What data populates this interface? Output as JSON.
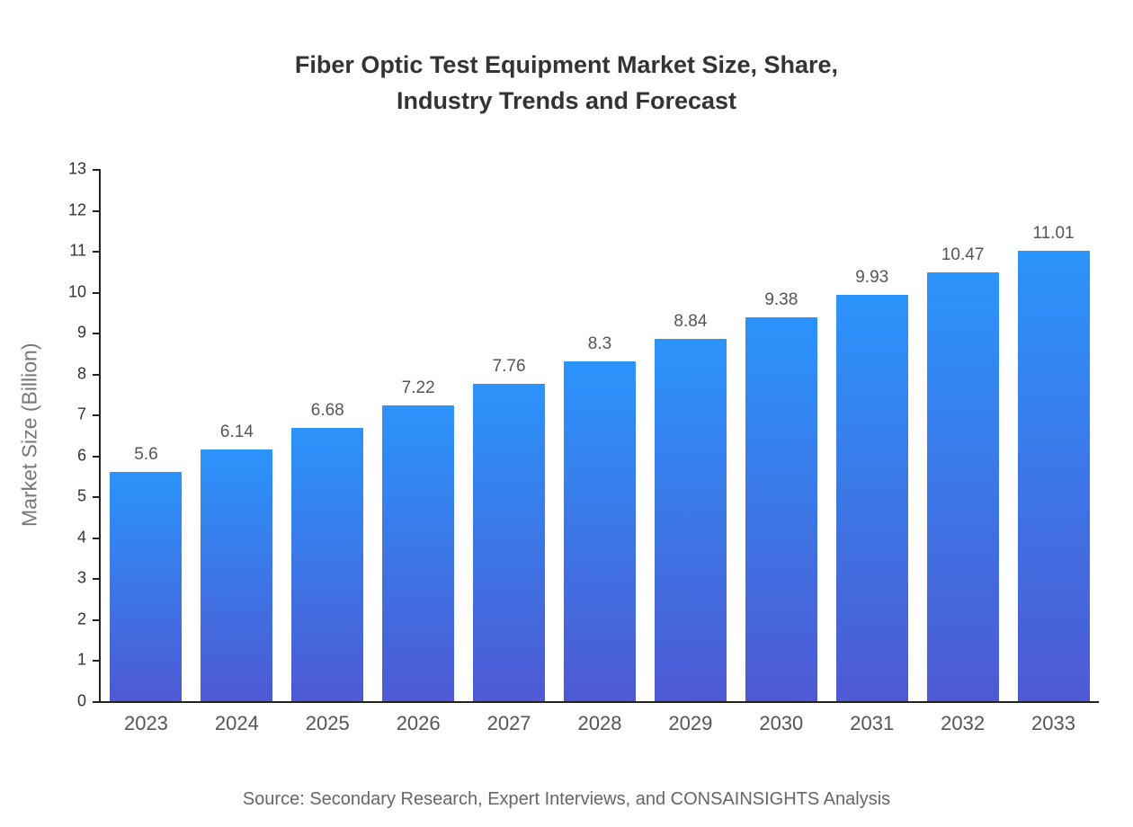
{
  "title": {
    "line1": "Fiber Optic Test Equipment Market Size, Share,",
    "line2": "Industry Trends and Forecast"
  },
  "source": "Source: Secondary Research, Expert Interviews, and CONSAINSIGHTS Analysis",
  "chart_data": {
    "type": "bar",
    "title": "Fiber Optic Test Equipment Market Size, Share, Industry Trends and Forecast",
    "categories": [
      "2023",
      "2024",
      "2025",
      "2026",
      "2027",
      "2028",
      "2029",
      "2030",
      "2031",
      "2032",
      "2033"
    ],
    "values": [
      5.6,
      6.14,
      6.68,
      7.22,
      7.76,
      8.3,
      8.84,
      9.38,
      9.93,
      10.47,
      11.01
    ],
    "value_labels": [
      "5.6",
      "6.14",
      "6.68",
      "7.22",
      "7.76",
      "8.3",
      "8.84",
      "9.38",
      "9.93",
      "10.47",
      "11.01"
    ],
    "xlabel": "",
    "ylabel": "Market Size (Billion)",
    "ylim": [
      0,
      13
    ],
    "ytick_step": 1,
    "ytick_labels": [
      "0",
      "1",
      "2",
      "3",
      "4",
      "5",
      "6",
      "7",
      "8",
      "9",
      "10",
      "11",
      "12",
      "13"
    ],
    "grid": false,
    "legend": false,
    "colors": {
      "bar_gradient_top": "#2b94fb",
      "bar_gradient_bottom": "#4e59d3",
      "axis": "#222222",
      "ytick_label": "#333333",
      "xtick_label": "#555555",
      "value_label": "#555555",
      "title": "#333333",
      "ylabel": "#777777",
      "source": "#666666"
    }
  }
}
